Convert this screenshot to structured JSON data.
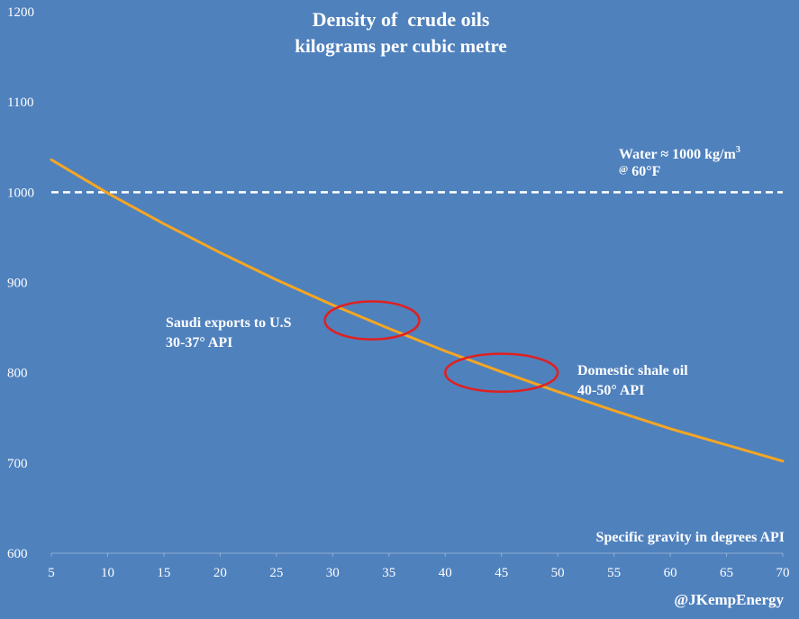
{
  "chart_data": {
    "type": "line",
    "title": "Density of  crude oils",
    "subtitle": "kilograms per cubic metre",
    "xlabel": "Specific gravity in degrees API",
    "xlim": [
      5,
      70
    ],
    "ylim": [
      600,
      1200
    ],
    "x_ticks": [
      5,
      10,
      15,
      20,
      25,
      30,
      35,
      40,
      45,
      50,
      55,
      60,
      65,
      70
    ],
    "y_ticks": [
      600,
      700,
      800,
      900,
      1000,
      1100,
      1200
    ],
    "grid": false,
    "series_color": "#f5a623",
    "series": [
      {
        "x": [
          5,
          10,
          15,
          20,
          25,
          30,
          35,
          40,
          45,
          50,
          55,
          60,
          65,
          70
        ],
        "y": [
          1036,
          999,
          965,
          933,
          903,
          875,
          849,
          824,
          801,
          779,
          758,
          738,
          720,
          702
        ]
      }
    ],
    "reference_line": {
      "y": 1000,
      "style": "dashed",
      "color": "#ffffff",
      "label_line1_prefix": "Water ≈ 1000 kg/m",
      "label_line1_sup": "3",
      "label_line2_at": "@",
      "label_line2_rest": " 60°F"
    },
    "annotations": [
      {
        "line1": "Saudi exports to U.S",
        "line2": "30-37° API",
        "x_center": 33.5,
        "y_center": 858,
        "x_half_width": 4.2,
        "y_half_height": 21
      },
      {
        "line1": "Domestic shale oil",
        "line2": "40-50° API",
        "x_center": 45,
        "y_center": 800,
        "x_half_width": 5,
        "y_half_height": 21
      }
    ],
    "ellipse_color": "#e02020",
    "credit": "@JKempEnergy"
  }
}
